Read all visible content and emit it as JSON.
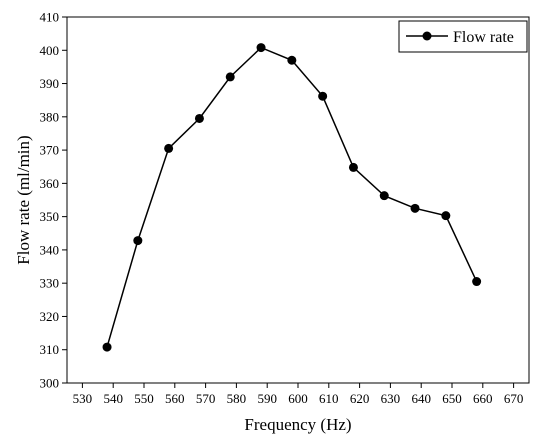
{
  "chart_data": {
    "type": "line",
    "title": "",
    "xlabel": "Frequency (Hz)",
    "ylabel": "Flow rate (ml/min)",
    "xlim": [
      525,
      675
    ],
    "ylim": [
      300,
      410
    ],
    "x_ticks": [
      530,
      540,
      550,
      560,
      570,
      580,
      590,
      600,
      610,
      620,
      630,
      640,
      650,
      660,
      670
    ],
    "y_ticks": [
      300,
      310,
      320,
      330,
      340,
      350,
      360,
      370,
      380,
      390,
      400,
      410
    ],
    "grid": false,
    "legend_position": "top-right",
    "marker": "filled-circle",
    "line_color": "#000000",
    "series": [
      {
        "name": "Flow rate",
        "x": [
          538,
          548,
          558,
          568,
          578,
          588,
          598,
          608,
          618,
          628,
          638,
          648,
          658
        ],
        "y": [
          310.8,
          342.8,
          370.5,
          379.5,
          392.0,
          400.8,
          397.0,
          386.2,
          364.8,
          356.3,
          352.5,
          350.3,
          330.5
        ]
      }
    ]
  }
}
